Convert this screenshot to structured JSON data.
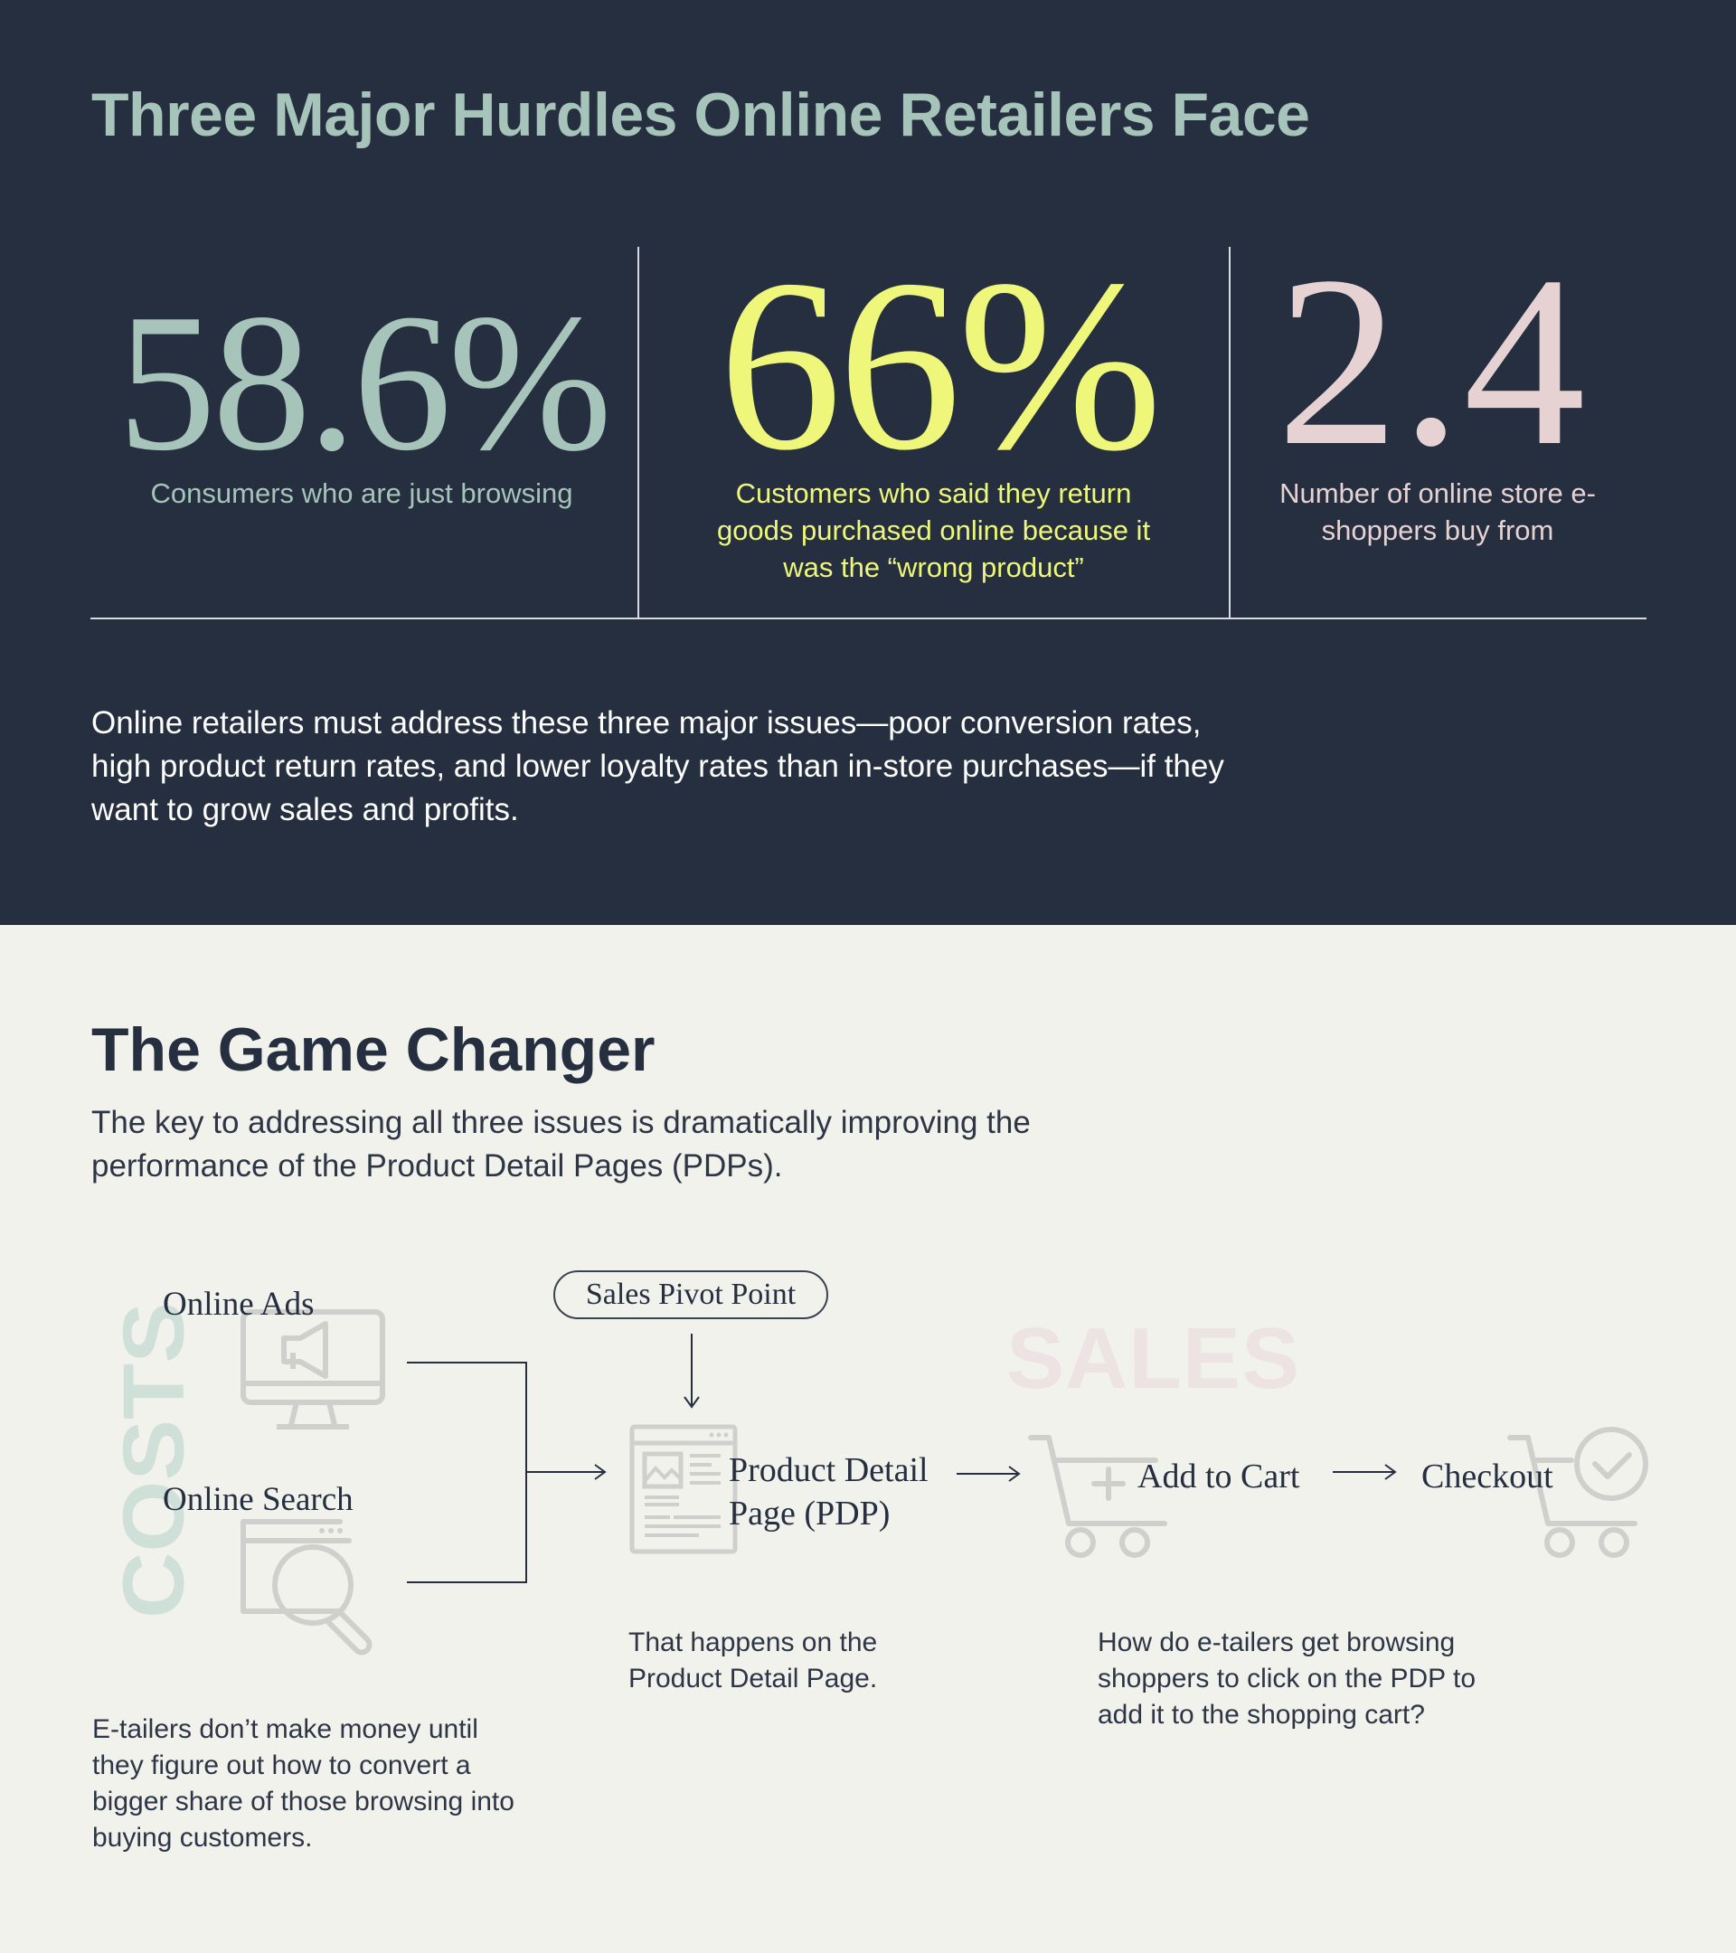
{
  "top": {
    "title": "Three Major Hurdles Online Retailers Face",
    "stats": [
      {
        "value": "58.6%",
        "description": "Consumers who are just browsing",
        "color": "#a6c4b9"
      },
      {
        "value": "66%",
        "description": "Customers who said they return goods purchased online because it was the “wrong product”",
        "color": "#eef77a"
      },
      {
        "value": "2.4",
        "description": "Number of online store e-shoppers buy from",
        "color": "#e6d2d3"
      }
    ],
    "body": "Online retailers must address these three major issues—poor conversion rates, high product return rates, and lower loyalty rates than in-store purchases—if they want to grow sales and profits."
  },
  "game": {
    "title": "The Game Changer",
    "body": "The key to addressing all three issues is dramatically improving the performance of the Product Detail Pages (PDPs)."
  },
  "flow": {
    "costs_label": "COSTS",
    "sales_label": "SALES",
    "pivot_label": "Sales Pivot Point",
    "online_ads": "Online Ads",
    "online_search": "Online Search",
    "pdp_line1": "Product Detail",
    "pdp_line2": "Page (PDP)",
    "add_to_cart": "Add to Cart",
    "checkout": "Checkout",
    "note_costs": "E-tailers don’t make money until they figure out how to convert a bigger share of those browsing into buying customers.",
    "note_pdp": "That happens on the Product Detail Page.",
    "note_cart": "How do e-tailers get browsing shoppers to click on the PDP to add it to the shopping cart?"
  },
  "colors": {
    "dark_bg": "#252f40",
    "light_bg": "#f2f2ed",
    "sage": "#a6c4b9",
    "lime": "#eef77a",
    "blush": "#e6d2d3",
    "costs_tint": "#cfe0d8",
    "sales_tint": "#ede3e2",
    "icon_grey": "#cfcfcb"
  }
}
